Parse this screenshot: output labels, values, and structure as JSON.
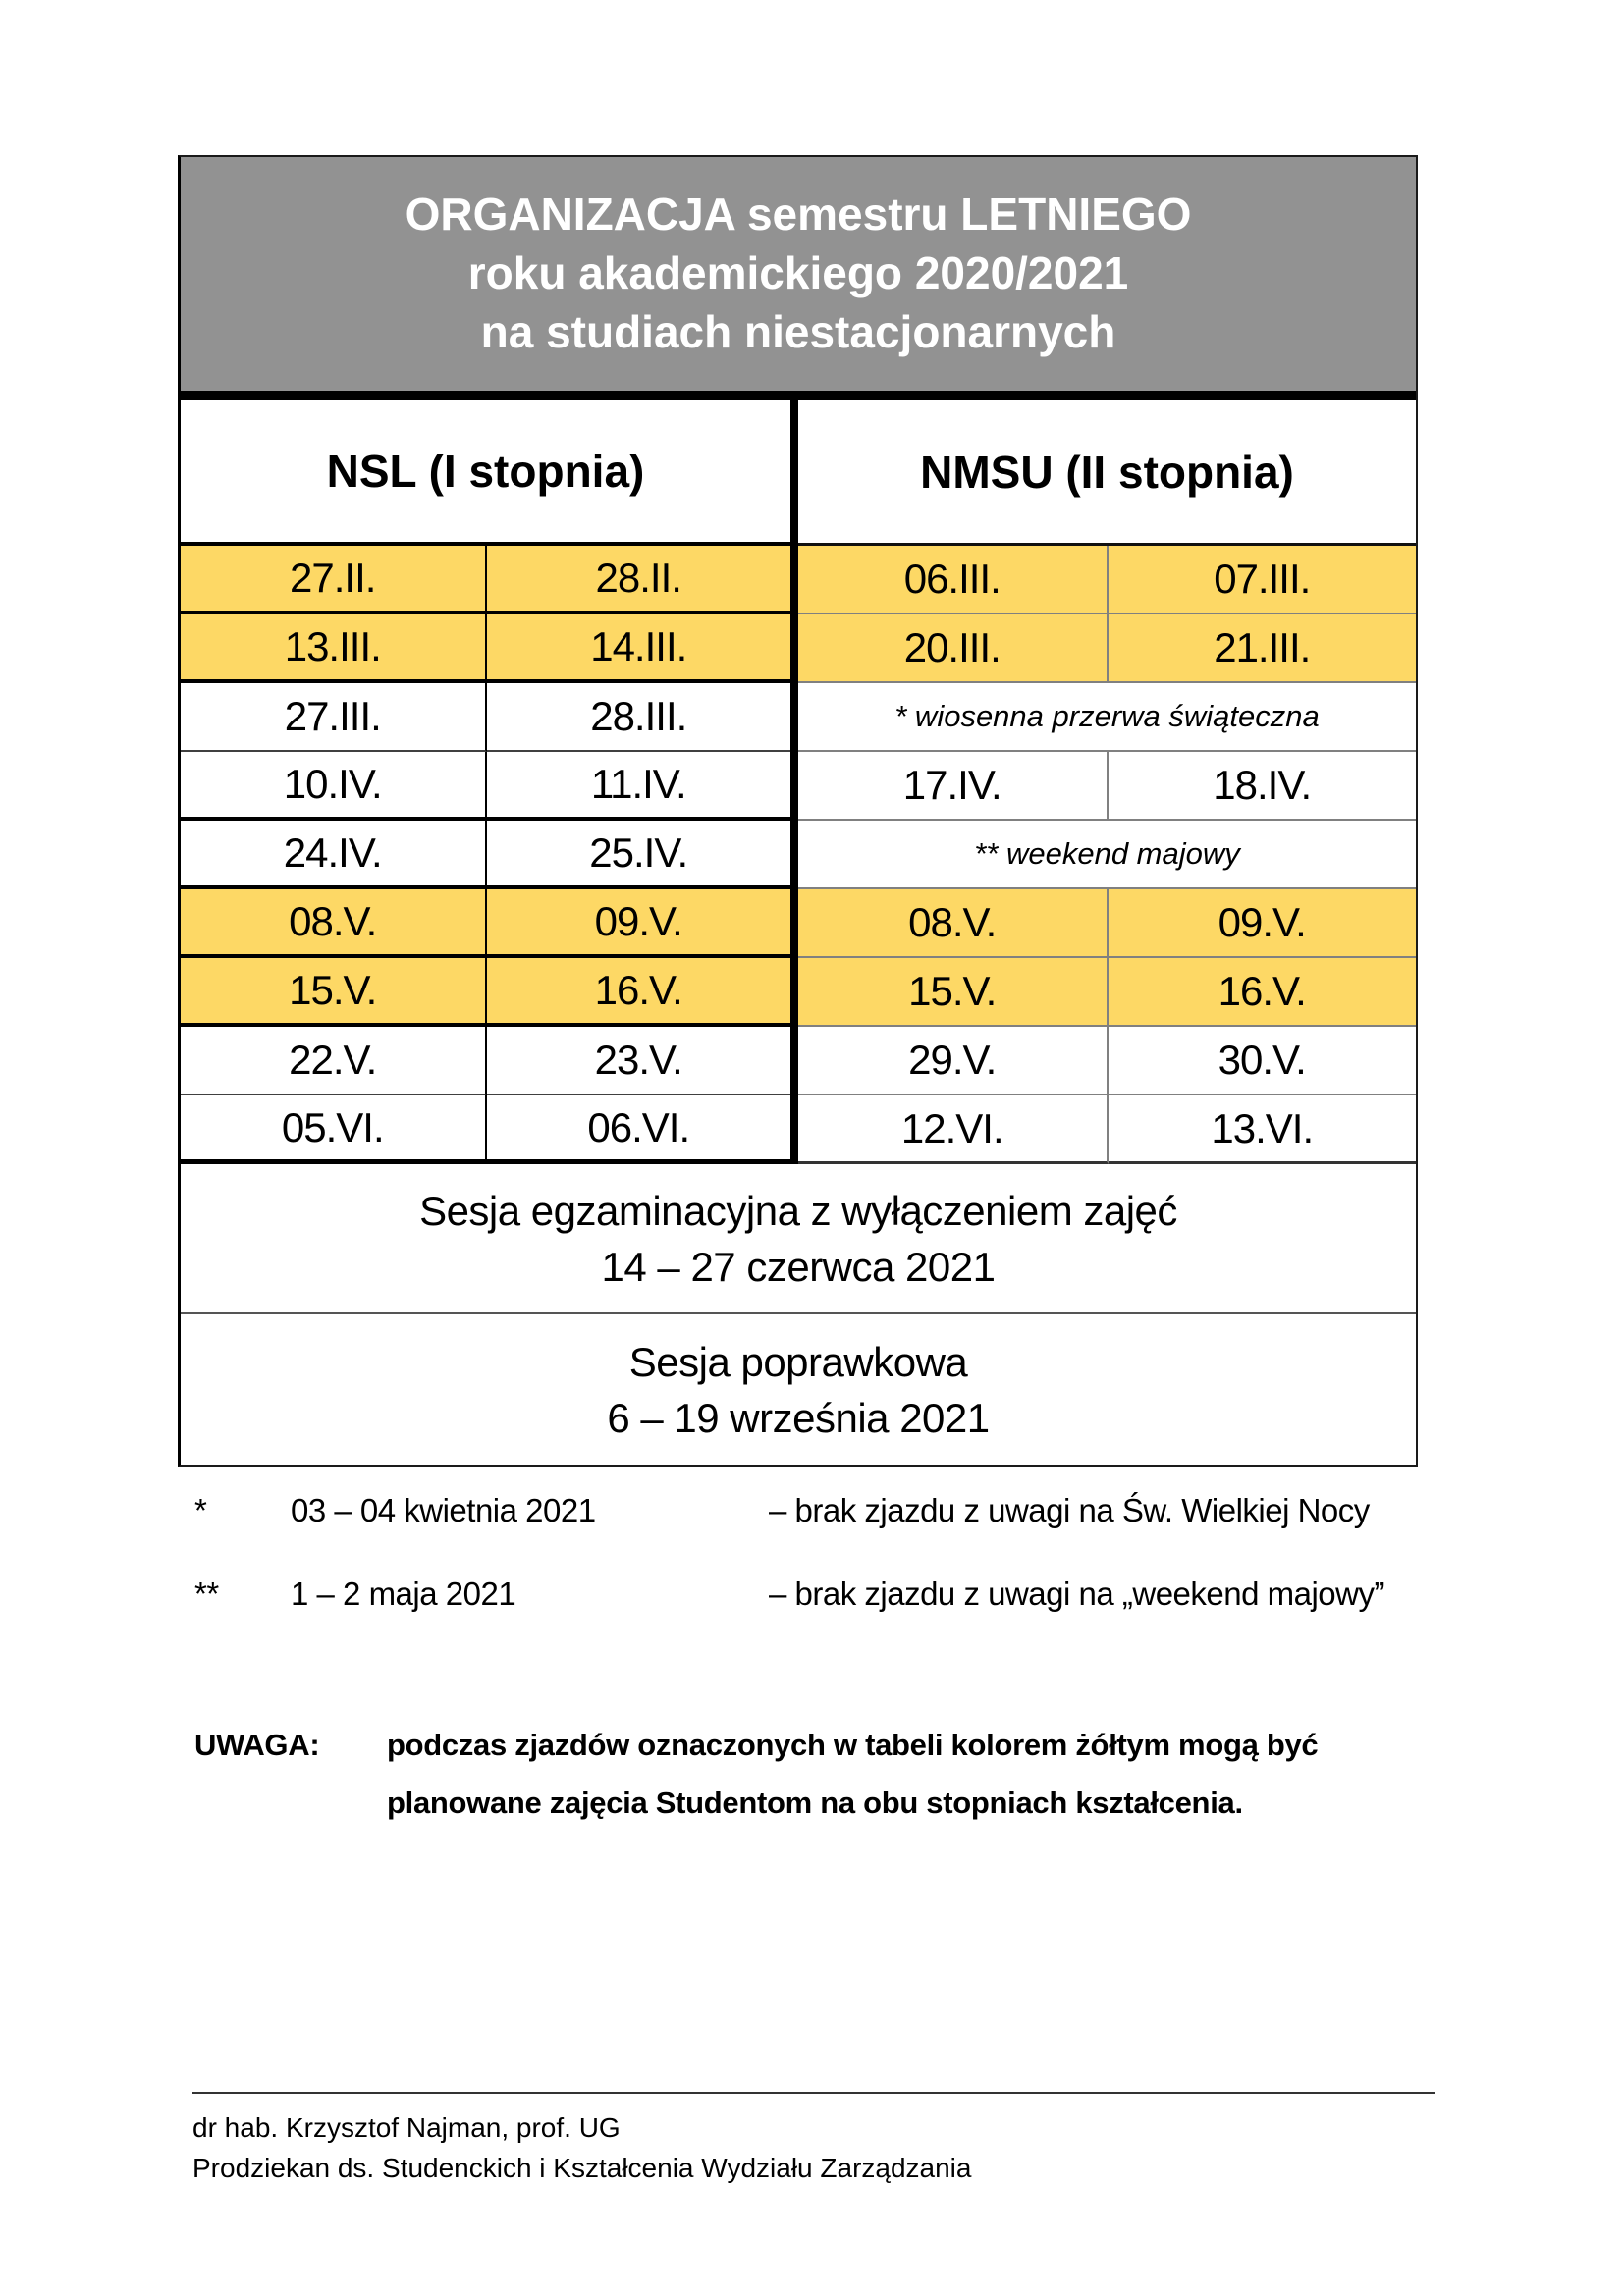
{
  "colors": {
    "header_bg": "#929292",
    "header_text": "#ffffff",
    "highlight": "#FDD865",
    "thin_line": "#808080"
  },
  "title": {
    "line1": "ORGANIZACJA semestru LETNIEGO",
    "line2": "roku akademickiego 2020/2021",
    "line3": "na studiach niestacjonarnych"
  },
  "table": {
    "group_headers": [
      "NSL (I stopnia)",
      "NMSU (II stopnia)"
    ],
    "rows": [
      {
        "highlight": true,
        "cells": [
          "27.II.",
          "28.II.",
          "06.III.",
          "07.III."
        ]
      },
      {
        "highlight": true,
        "cells": [
          "13.III.",
          "14.III.",
          "20.III.",
          "21.III."
        ]
      },
      {
        "highlight": false,
        "cells": [
          "27.III.",
          "28.III."
        ],
        "note": "* wiosenna przerwa świąteczna"
      },
      {
        "highlight": false,
        "cells": [
          "10.IV.",
          "11.IV.",
          "17.IV.",
          "18.IV."
        ]
      },
      {
        "highlight": false,
        "cells": [
          "24.IV.",
          "25.IV."
        ],
        "note": "** weekend majowy"
      },
      {
        "highlight": true,
        "cells": [
          "08.V.",
          "09.V.",
          "08.V.",
          "09.V."
        ]
      },
      {
        "highlight": true,
        "cells": [
          "15.V.",
          "16.V.",
          "15.V.",
          "16.V."
        ]
      },
      {
        "highlight": false,
        "cells": [
          "22.V.",
          "23.V.",
          "29.V.",
          "30.V."
        ]
      },
      {
        "highlight": false,
        "cells": [
          "05.VI.",
          "06.VI.",
          "12.VI.",
          "13.VI."
        ]
      }
    ],
    "sessions": [
      {
        "title": "Sesja egzaminacyjna z wyłączeniem zajęć",
        "dates": "14 – 27 czerwca 2021"
      },
      {
        "title": "Sesja poprawkowa",
        "dates": "6 – 19 września 2021"
      }
    ]
  },
  "footnotes": [
    {
      "marker": "*",
      "date": "03 – 04 kwietnia 2021",
      "description": "– brak zjazdu z uwagi na Św. Wielkiej Nocy"
    },
    {
      "marker": "**",
      "date": "1 – 2 maja 2021",
      "description": "– brak zjazdu z uwagi na „weekend majowy”"
    }
  ],
  "uwaga": {
    "label": "UWAGA:",
    "text": "podczas zjazdów oznaczonych w tabeli kolorem żółtym mogą być planowane zajęcia Studentom na obu stopniach kształcenia."
  },
  "footer": {
    "line1": "dr hab. Krzysztof Najman, prof. UG",
    "line2": "Prodziekan ds. Studenckich i Kształcenia Wydziału Zarządzania"
  }
}
